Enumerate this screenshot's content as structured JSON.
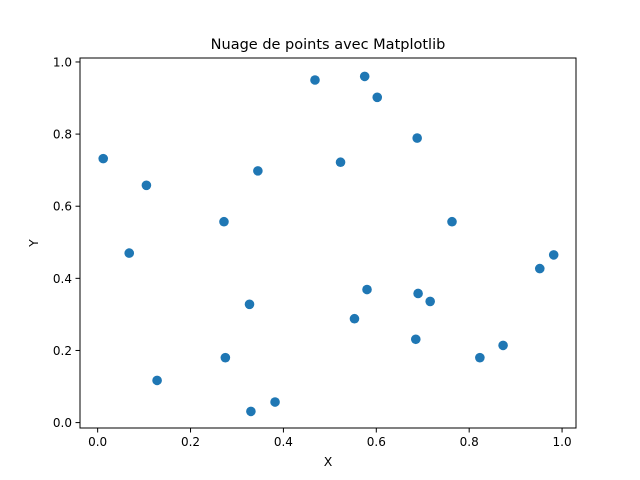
{
  "chart_data": {
    "type": "scatter",
    "title": "Nuage de points avec Matplotlib",
    "xlabel": "X",
    "ylabel": "Y",
    "xlim": [
      -0.038,
      1.03
    ],
    "ylim": [
      -0.015,
      1.011
    ],
    "xticks": [
      "0.0",
      "0.2",
      "0.4",
      "0.6",
      "0.8",
      "1.0"
    ],
    "yticks": [
      "0.0",
      "0.2",
      "0.4",
      "0.6",
      "0.8",
      "1.0"
    ],
    "grid": false,
    "marker_color": "#1f77b4",
    "points": [
      {
        "x": 0.012,
        "y": 0.732
      },
      {
        "x": 0.068,
        "y": 0.47
      },
      {
        "x": 0.105,
        "y": 0.658
      },
      {
        "x": 0.128,
        "y": 0.117
      },
      {
        "x": 0.272,
        "y": 0.557
      },
      {
        "x": 0.275,
        "y": 0.18
      },
      {
        "x": 0.327,
        "y": 0.328
      },
      {
        "x": 0.33,
        "y": 0.031
      },
      {
        "x": 0.345,
        "y": 0.698
      },
      {
        "x": 0.382,
        "y": 0.057
      },
      {
        "x": 0.468,
        "y": 0.95
      },
      {
        "x": 0.523,
        "y": 0.722
      },
      {
        "x": 0.553,
        "y": 0.288
      },
      {
        "x": 0.575,
        "y": 0.96
      },
      {
        "x": 0.58,
        "y": 0.369
      },
      {
        "x": 0.602,
        "y": 0.902
      },
      {
        "x": 0.685,
        "y": 0.231
      },
      {
        "x": 0.688,
        "y": 0.789
      },
      {
        "x": 0.69,
        "y": 0.358
      },
      {
        "x": 0.716,
        "y": 0.336
      },
      {
        "x": 0.763,
        "y": 0.557
      },
      {
        "x": 0.823,
        "y": 0.18
      },
      {
        "x": 0.873,
        "y": 0.214
      },
      {
        "x": 0.952,
        "y": 0.427
      },
      {
        "x": 0.982,
        "y": 0.465
      }
    ]
  }
}
